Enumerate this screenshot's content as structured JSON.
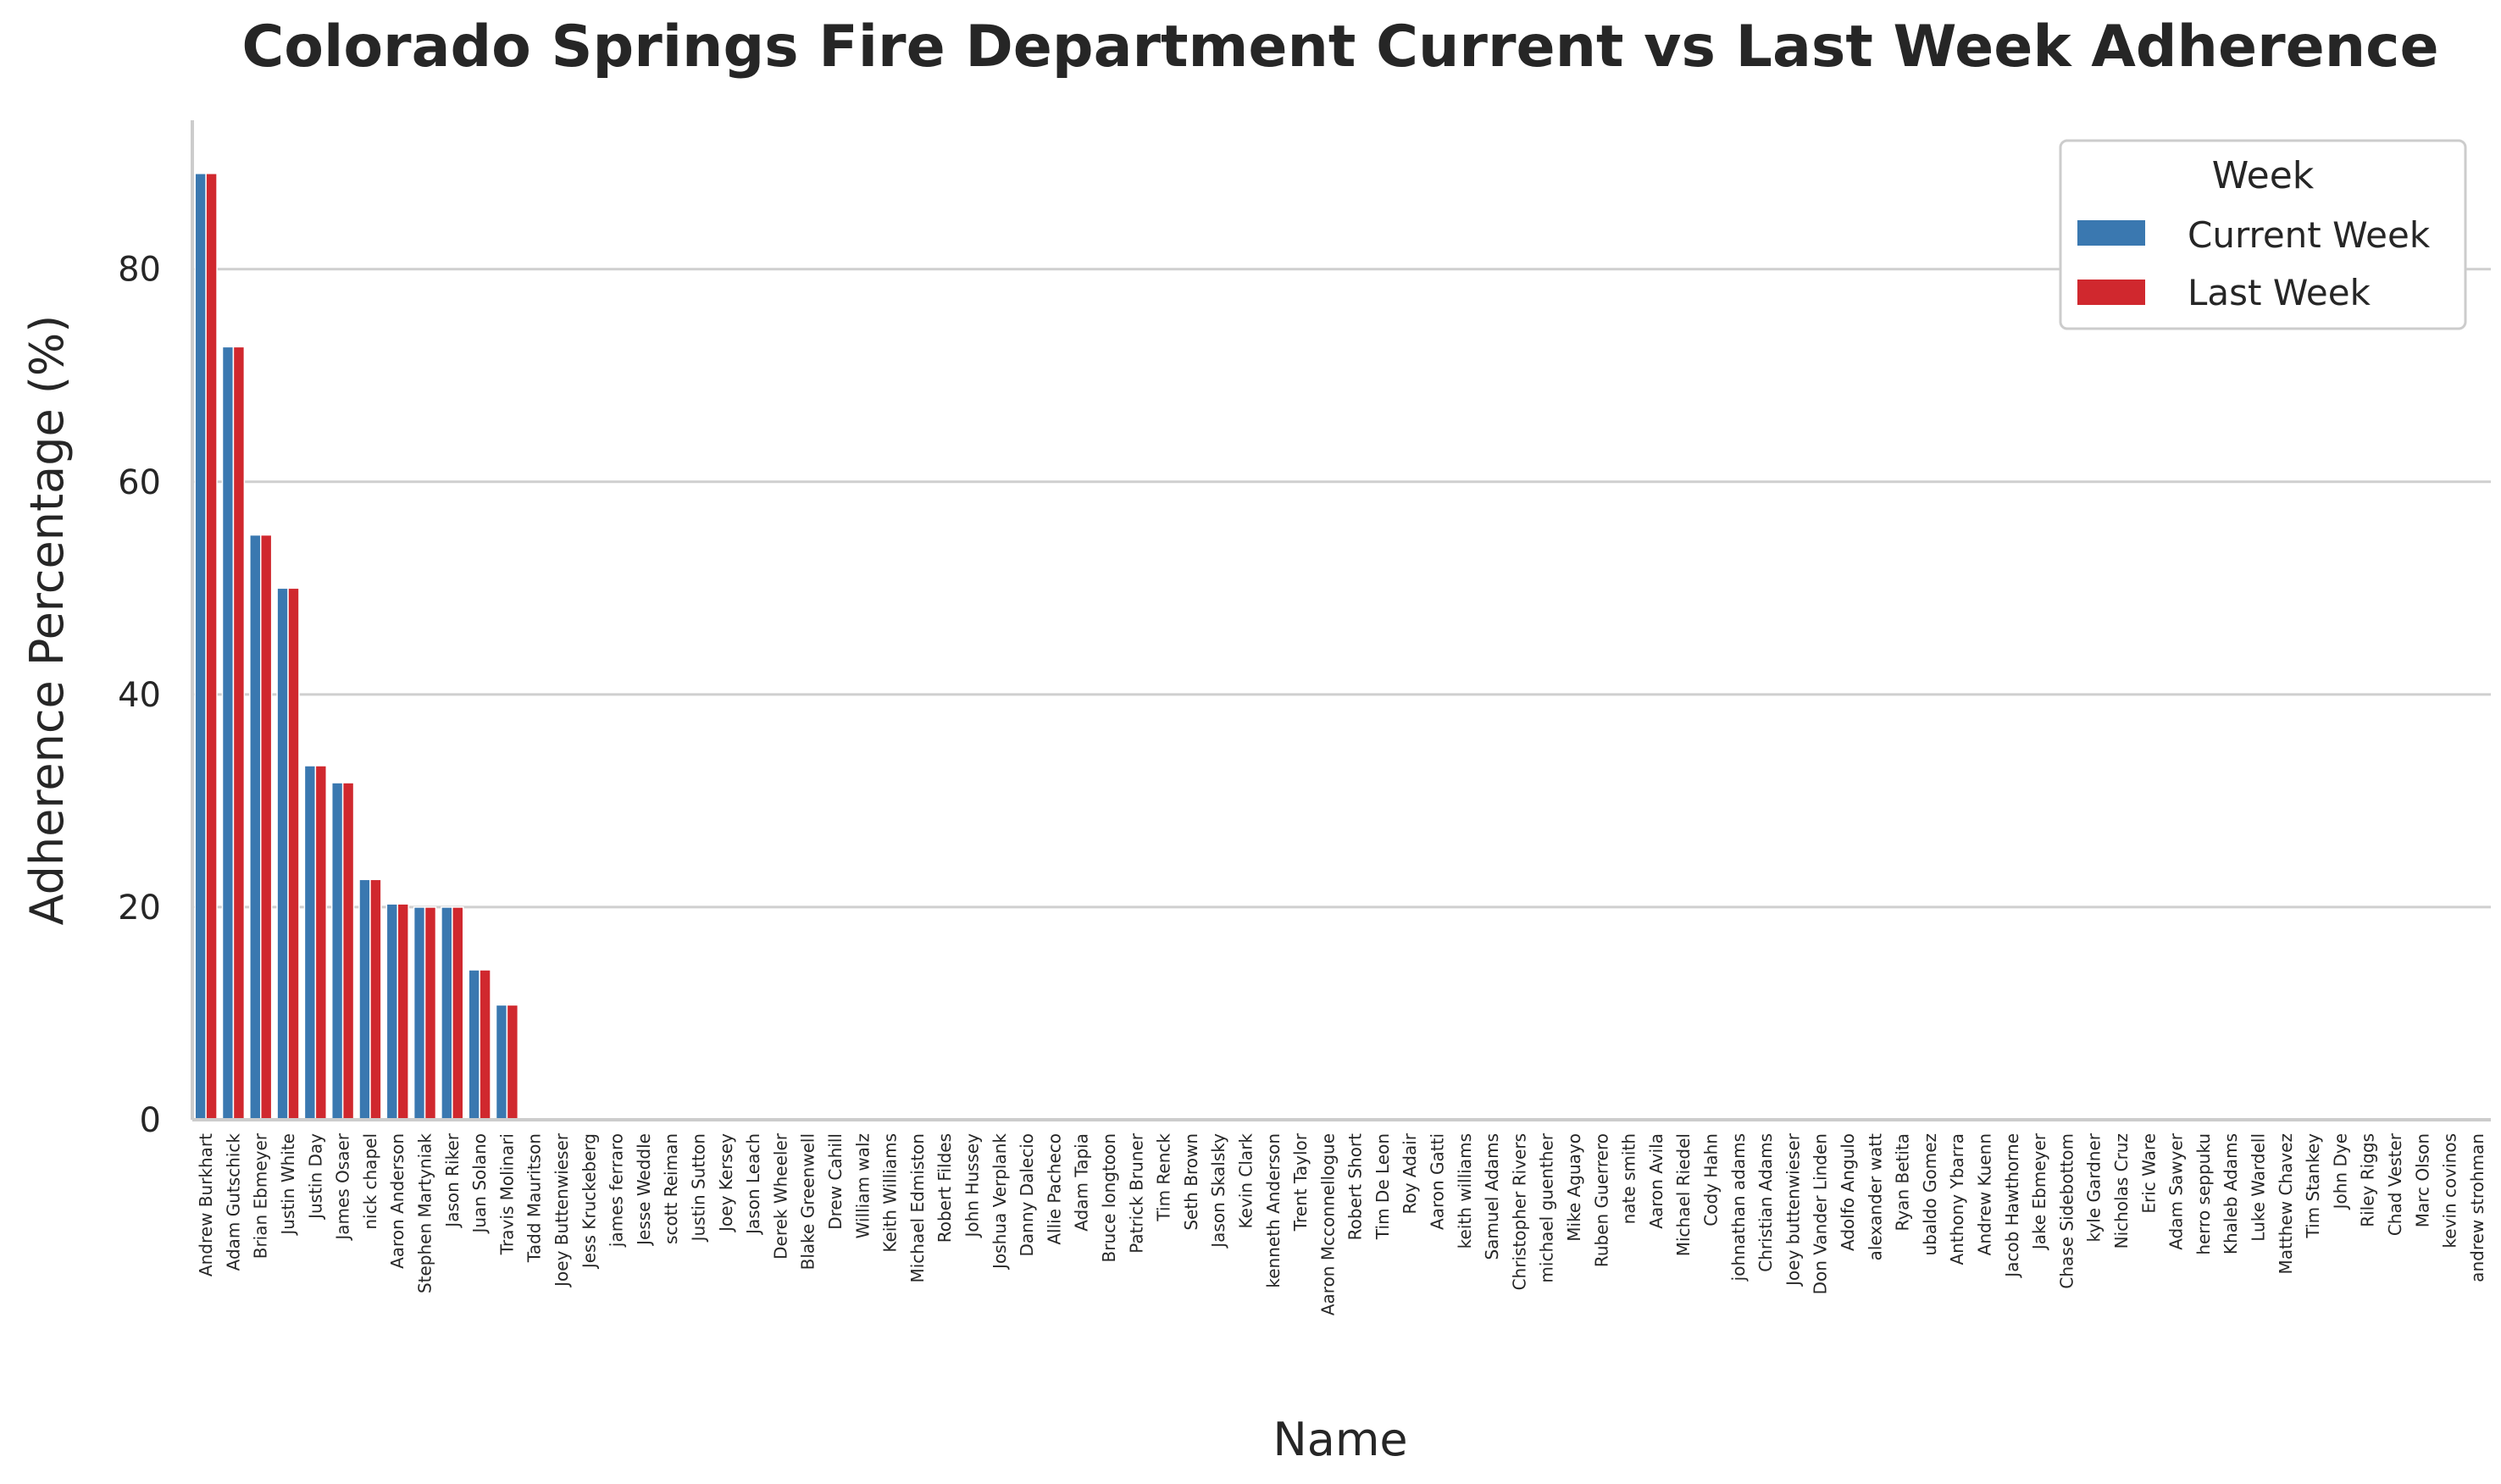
{
  "chart_data": {
    "type": "bar",
    "title": "Colorado Springs Fire Department Current vs Last Week Adherence",
    "xlabel": "Name",
    "ylabel": "Adherence Percentage (%)",
    "ylim": [
      0,
      94
    ],
    "yticks": [
      0,
      20,
      40,
      60,
      80
    ],
    "grid": "horizontal",
    "legend": {
      "title": "Week",
      "placement": "top-right"
    },
    "categories": [
      "Andrew Burkhart",
      "Adam Gutschick",
      "Brian Ebmeyer",
      "Justin White",
      "Justin Day",
      "James Osaer",
      "nick chapel",
      "Aaron Anderson",
      "Stephen Martyniak",
      "Jason Riker",
      "Juan Solano",
      "Travis Molinari",
      "Tadd Mauritson",
      "Joey Buttenwieser",
      "Jess Kruckeberg",
      "james ferraro",
      "Jesse Weddle",
      "scott Reiman",
      "Justin Sutton",
      "Joey Kersey",
      "Jason Leach",
      "Derek Wheeler",
      "Blake Greenwell",
      "Drew Cahill",
      "William walz",
      "Keith Williams",
      "Michael Edmiston",
      "Robert Fildes",
      "John Hussey",
      "Joshua Verplank",
      "Danny Dalecio",
      "Allie Pacheco",
      "Adam Tapia",
      "Bruce longtoon",
      "Patrick Bruner",
      "Tim Renck",
      "Seth Brown",
      "Jason Skalsky",
      "Kevin Clark",
      "kenneth Anderson",
      "Trent Taylor",
      "Aaron Mcconnellogue",
      "Robert Short",
      "Tim De Leon",
      "Roy Adair",
      "Aaron Gatti",
      "keith williams",
      "Samuel Adams",
      "Christopher Rivers",
      "michael guenther",
      "Mike Aguayo",
      "Ruben Guerrero",
      "nate smith",
      "Aaron Avila",
      "Michael Riedel",
      "Cody Hahn",
      "johnathan adams",
      "Christian Adams",
      "Joey buttenwieser",
      "Don Vander Linden",
      "Adolfo Angulo",
      "alexander watt",
      "Ryan Betita",
      "ubaldo Gomez",
      "Anthony Ybarra",
      "Andrew Kuenn",
      "Jacob Hawthorne",
      "Jake Ebmeyer",
      "Chase Sidebottom",
      "kyle Gardner",
      "Nicholas Cruz",
      "Eric Ware",
      "Adam Sawyer",
      "herro seppuku",
      "Khaleb Adams",
      "Luke Wardell",
      "Matthew Chavez",
      "Tim Stankey",
      "John Dye",
      "Riley Riggs",
      "Chad Vester",
      "Marc Olson",
      "kevin covinos",
      "andrew strohman"
    ],
    "series": [
      {
        "name": "Current Week",
        "color": "#3a78b0",
        "values": [
          89,
          72.7,
          55,
          50,
          33.3,
          31.7,
          22.6,
          20.3,
          20,
          20,
          14.1,
          10.8,
          0,
          0,
          0,
          0,
          0,
          0,
          0,
          0,
          0,
          0,
          0,
          0,
          0,
          0,
          0,
          0,
          0,
          0,
          0,
          0,
          0,
          0,
          0,
          0,
          0,
          0,
          0,
          0,
          0,
          0,
          0,
          0,
          0,
          0,
          0,
          0,
          0,
          0,
          0,
          0,
          0,
          0,
          0,
          0,
          0,
          0,
          0,
          0,
          0,
          0,
          0,
          0,
          0,
          0,
          0,
          0,
          0,
          0,
          0,
          0,
          0,
          0,
          0,
          0,
          0,
          0,
          0,
          0,
          0,
          0,
          0,
          0
        ]
      },
      {
        "name": "Last Week",
        "color": "#d0282e",
        "values": [
          89,
          72.7,
          55,
          50,
          33.3,
          31.7,
          22.6,
          20.3,
          20,
          20,
          14.1,
          10.8,
          0,
          0,
          0,
          0,
          0,
          0,
          0,
          0,
          0,
          0,
          0,
          0,
          0,
          0,
          0,
          0,
          0,
          0,
          0,
          0,
          0,
          0,
          0,
          0,
          0,
          0,
          0,
          0,
          0,
          0,
          0,
          0,
          0,
          0,
          0,
          0,
          0,
          0,
          0,
          0,
          0,
          0,
          0,
          0,
          0,
          0,
          0,
          0,
          0,
          0,
          0,
          0,
          0,
          0,
          0,
          0,
          0,
          0,
          0,
          0,
          0,
          0,
          0,
          0,
          0,
          0,
          0,
          0,
          0,
          0,
          0,
          0
        ]
      }
    ]
  }
}
